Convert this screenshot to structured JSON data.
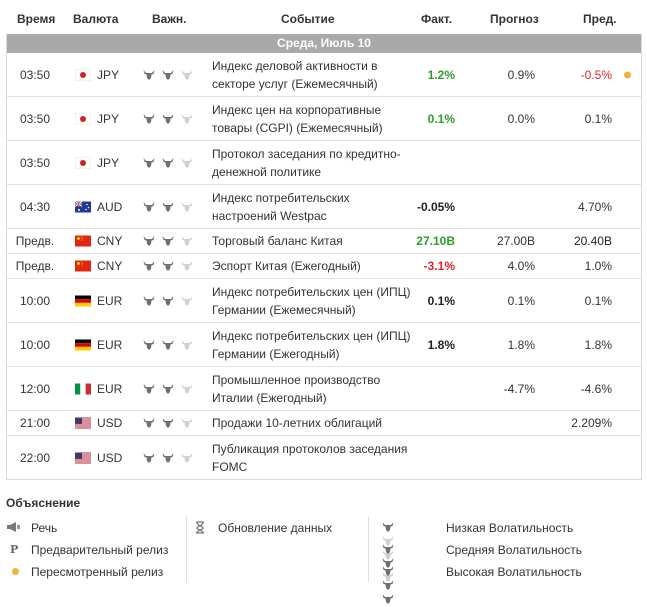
{
  "columns": {
    "time": "Время",
    "currency": "Валюта",
    "importance": "Важн.",
    "event": "Событие",
    "actual": "Факт.",
    "forecast": "Прогноз",
    "previous": "Пред."
  },
  "date_label": "Среда, Июль 10",
  "colors": {
    "high_bull": "#707070",
    "low_bull": "#d0d0d0",
    "positive": "#2e9e2e",
    "negative": "#e0262b",
    "revised_dot": "#f0b33c",
    "date_bar": "#a9a9a9"
  },
  "rows": [
    {
      "time": "03:50",
      "flag": "japan-flag-icon",
      "currency": "JPY",
      "volatility": 2,
      "event": "Индекс деловой активности в секторе услуг (Ежемесячный)",
      "actual": "1.2%",
      "actual_color": "green",
      "forecast": "0.9%",
      "previous": "-0.5%",
      "previous_color": "red",
      "revised": true
    },
    {
      "time": "03:50",
      "flag": "japan-flag-icon",
      "currency": "JPY",
      "volatility": 2,
      "event": "Индекс цен на корпоративные товары (CGPI) (Ежемесячный)",
      "actual": "0.1%",
      "actual_color": "green",
      "forecast": "0.0%",
      "previous": "0.1%",
      "previous_color": "normal",
      "revised": false
    },
    {
      "time": "03:50",
      "flag": "japan-flag-icon",
      "currency": "JPY",
      "volatility": 2,
      "event": "Протокол заседания по кредитно-денежной политике",
      "actual": "",
      "actual_color": "normal",
      "forecast": "",
      "previous": "",
      "previous_color": "normal",
      "revised": false
    },
    {
      "time": "04:30",
      "flag": "australia-flag-icon",
      "currency": "AUD",
      "volatility": 2,
      "event": "Индекс потребительских настроений Westpac",
      "actual": "-0.05%",
      "actual_color": "black",
      "forecast": "",
      "previous": "4.70%",
      "previous_color": "normal",
      "revised": false
    },
    {
      "time": "Предв.",
      "flag": "china-flag-icon",
      "currency": "CNY",
      "volatility": 2,
      "event": "Торговый баланс Китая",
      "actual": "27.10B",
      "actual_color": "green",
      "forecast": "27.00B",
      "previous": "20.40B",
      "previous_color": "black",
      "revised": false
    },
    {
      "time": "Предв.",
      "flag": "china-flag-icon",
      "currency": "CNY",
      "volatility": 2,
      "event": "Эспорт Китая (Ежегодный)",
      "actual": "-3.1%",
      "actual_color": "red",
      "forecast": "4.0%",
      "previous": "1.0%",
      "previous_color": "normal",
      "revised": false
    },
    {
      "time": "10:00",
      "flag": "germany-flag-icon",
      "currency": "EUR",
      "volatility": 2,
      "event": "Индекс потребительских цен (ИПЦ) Германии (Ежемесячный)",
      "actual": "0.1%",
      "actual_color": "black",
      "forecast": "0.1%",
      "previous": "0.1%",
      "previous_color": "normal",
      "revised": false
    },
    {
      "time": "10:00",
      "flag": "germany-flag-icon",
      "currency": "EUR",
      "volatility": 2,
      "event": "Индекс потребительских цен (ИПЦ) Германии (Ежегодный)",
      "actual": "1.8%",
      "actual_color": "black",
      "forecast": "1.8%",
      "previous": "1.8%",
      "previous_color": "normal",
      "revised": false
    },
    {
      "time": "12:00",
      "flag": "italy-flag-icon",
      "currency": "EUR",
      "volatility": 2,
      "event": "Промышленное производство Италии (Ежегодный)",
      "actual": "",
      "actual_color": "normal",
      "forecast": "-4.7%",
      "previous": "-4.6%",
      "previous_color": "normal",
      "revised": false
    },
    {
      "time": "21:00",
      "flag": "usa-flag-icon",
      "currency": "USD",
      "volatility": 2,
      "event": "Продажи 10-летних облигаций",
      "actual": "",
      "actual_color": "normal",
      "forecast": "",
      "previous": "2.209%",
      "previous_color": "normal",
      "revised": false
    },
    {
      "time": "22:00",
      "flag": "usa-flag-icon",
      "currency": "USD",
      "volatility": 2,
      "event": "Публикация протоколов заседания FOMC",
      "actual": "",
      "actual_color": "normal",
      "forecast": "",
      "previous": "",
      "previous_color": "normal",
      "revised": false
    }
  ],
  "legend": {
    "title": "Объяснение",
    "speech": "Речь",
    "preliminary": "Предварительный релиз",
    "revised": "Пересмотренный релиз",
    "data_update": "Обновление данных",
    "low_vol": "Низкая Волатильность",
    "mid_vol": "Средняя Волатильность",
    "high_vol": "Высокая Волатильность",
    "preliminary_icon_letter": "P"
  }
}
